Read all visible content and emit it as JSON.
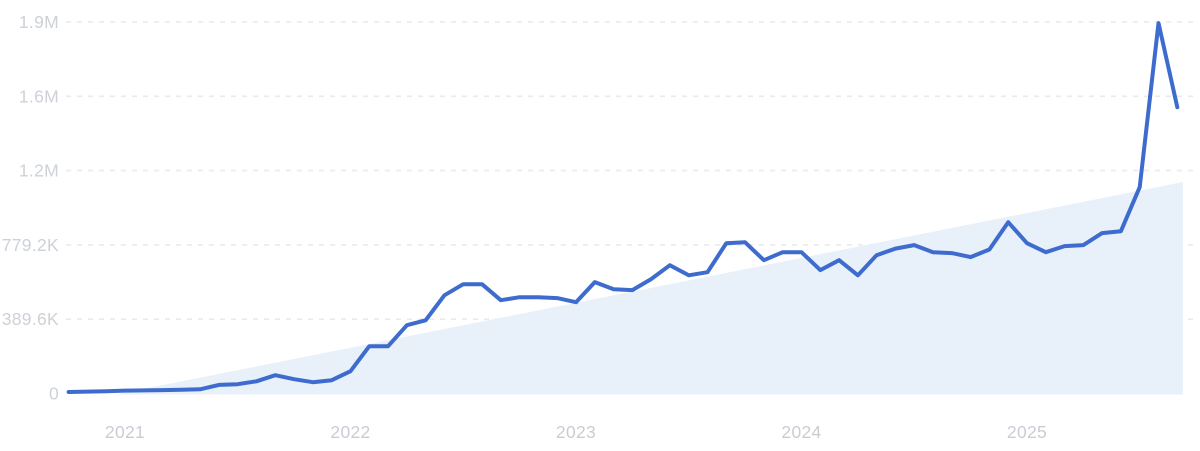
{
  "chart_data": {
    "type": "line",
    "title": "",
    "xlabel": "",
    "ylabel": "",
    "x": [
      "2020-10",
      "2020-11",
      "2020-12",
      "2021-01",
      "2021-02",
      "2021-03",
      "2021-04",
      "2021-05",
      "2021-06",
      "2021-07",
      "2021-08",
      "2021-09",
      "2021-10",
      "2021-11",
      "2021-12",
      "2022-01",
      "2022-02",
      "2022-03",
      "2022-04",
      "2022-05",
      "2022-06",
      "2022-07",
      "2022-08",
      "2022-09",
      "2022-10",
      "2022-11",
      "2022-12",
      "2023-01",
      "2023-02",
      "2023-03",
      "2023-04",
      "2023-05",
      "2023-06",
      "2023-07",
      "2023-08",
      "2023-09",
      "2023-10",
      "2023-11",
      "2023-12",
      "2024-01",
      "2024-02",
      "2024-03",
      "2024-04",
      "2024-05",
      "2024-06",
      "2024-07",
      "2024-08",
      "2024-09",
      "2024-10",
      "2024-11",
      "2024-12",
      "2025-01",
      "2025-02",
      "2025-03",
      "2025-04",
      "2025-05",
      "2025-06",
      "2025-07",
      "2025-08",
      "2025-09"
    ],
    "values": [
      8000,
      10000,
      12000,
      15000,
      16000,
      18000,
      20000,
      22000,
      45000,
      49000,
      64000,
      96000,
      75000,
      59000,
      70000,
      117000,
      248000,
      248000,
      358000,
      384000,
      515000,
      573000,
      573000,
      489000,
      505000,
      505000,
      500000,
      479000,
      584000,
      547000,
      542000,
      600000,
      673000,
      620000,
      636000,
      788000,
      793000,
      699000,
      741000,
      741000,
      647000,
      699000,
      620000,
      725000,
      760000,
      778000,
      741000,
      736000,
      715000,
      755000,
      898000,
      788000,
      741000,
      773000,
      778000,
      841000,
      851000,
      1082000,
      1942000,
      1501000
    ],
    "y_ticks": [
      {
        "value": 0,
        "label": "0"
      },
      {
        "value": 389600,
        "label": "389.6K"
      },
      {
        "value": 779200,
        "label": "779.2K"
      },
      {
        "value": 1168800,
        "label": "1.2M"
      },
      {
        "value": 1558400,
        "label": "1.6M"
      },
      {
        "value": 1948000,
        "label": "1.9M"
      }
    ],
    "x_year_labels": [
      {
        "label": "2021",
        "month_index": 3
      },
      {
        "label": "2022",
        "month_index": 15
      },
      {
        "label": "2023",
        "month_index": 27
      },
      {
        "label": "2024",
        "month_index": 39
      },
      {
        "label": "2025",
        "month_index": 51
      }
    ],
    "ylim": [
      0,
      1948000
    ],
    "grid": "dashed-horizontal",
    "legend": "none",
    "trend_area": {
      "start_month_index": 2.5,
      "start_value": 0,
      "end_month_index": 59.3,
      "end_value": 1109000
    },
    "colors": {
      "line": "#3d6bce",
      "trend_fill": "#e8f0fa",
      "gridline": "#e8eaee",
      "y_tick_label": "#cdd1d8",
      "x_year_label": "#c9cdd3",
      "background": "#ffffff"
    }
  }
}
